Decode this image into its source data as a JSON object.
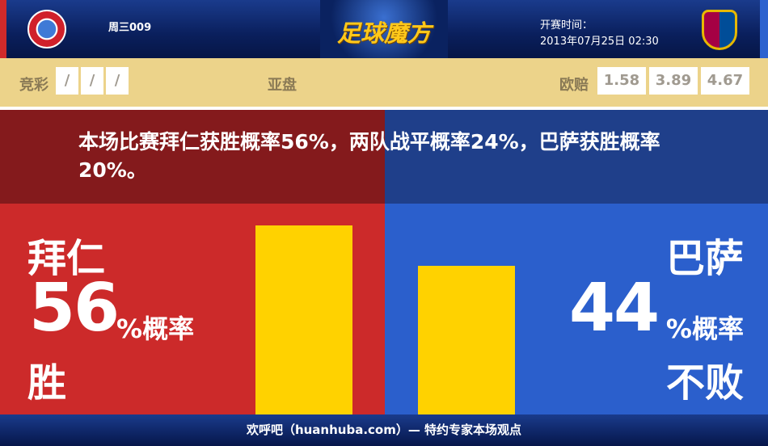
{
  "header": {
    "match_no": "周三009",
    "brand": "足球魔方",
    "kickoff_label": "开赛时间：",
    "kickoff_time": "2013年07月25日 02:30",
    "home_logo": "FC Bayern München",
    "away_logo": "FCB"
  },
  "odds": {
    "jingcai_label": "竞彩",
    "jingcai": [
      "/",
      "/",
      "/"
    ],
    "yapan_label": "亚盘",
    "ouzhi_label": "欧赔",
    "ouzhi": [
      "1.58",
      "3.89",
      "4.67"
    ]
  },
  "message": "本场比赛拜仁获胜概率56%，两队战平概率24%，巴萨获胜概率20%。",
  "home": {
    "name": "拜仁",
    "value": "56",
    "unit": "%概率",
    "outcome": "胜",
    "percent": 56
  },
  "away": {
    "name": "巴萨",
    "value": "44",
    "unit": "%概率",
    "outcome": "不败",
    "percent": 44
  },
  "colors": {
    "home": "#cc2a2a",
    "away": "#2b5fcc",
    "bar": "#ffd200",
    "odds_bg": "#ecd38a"
  },
  "footer": "欢呼吧（huanhuba.com）— 特约专家本场观点"
}
